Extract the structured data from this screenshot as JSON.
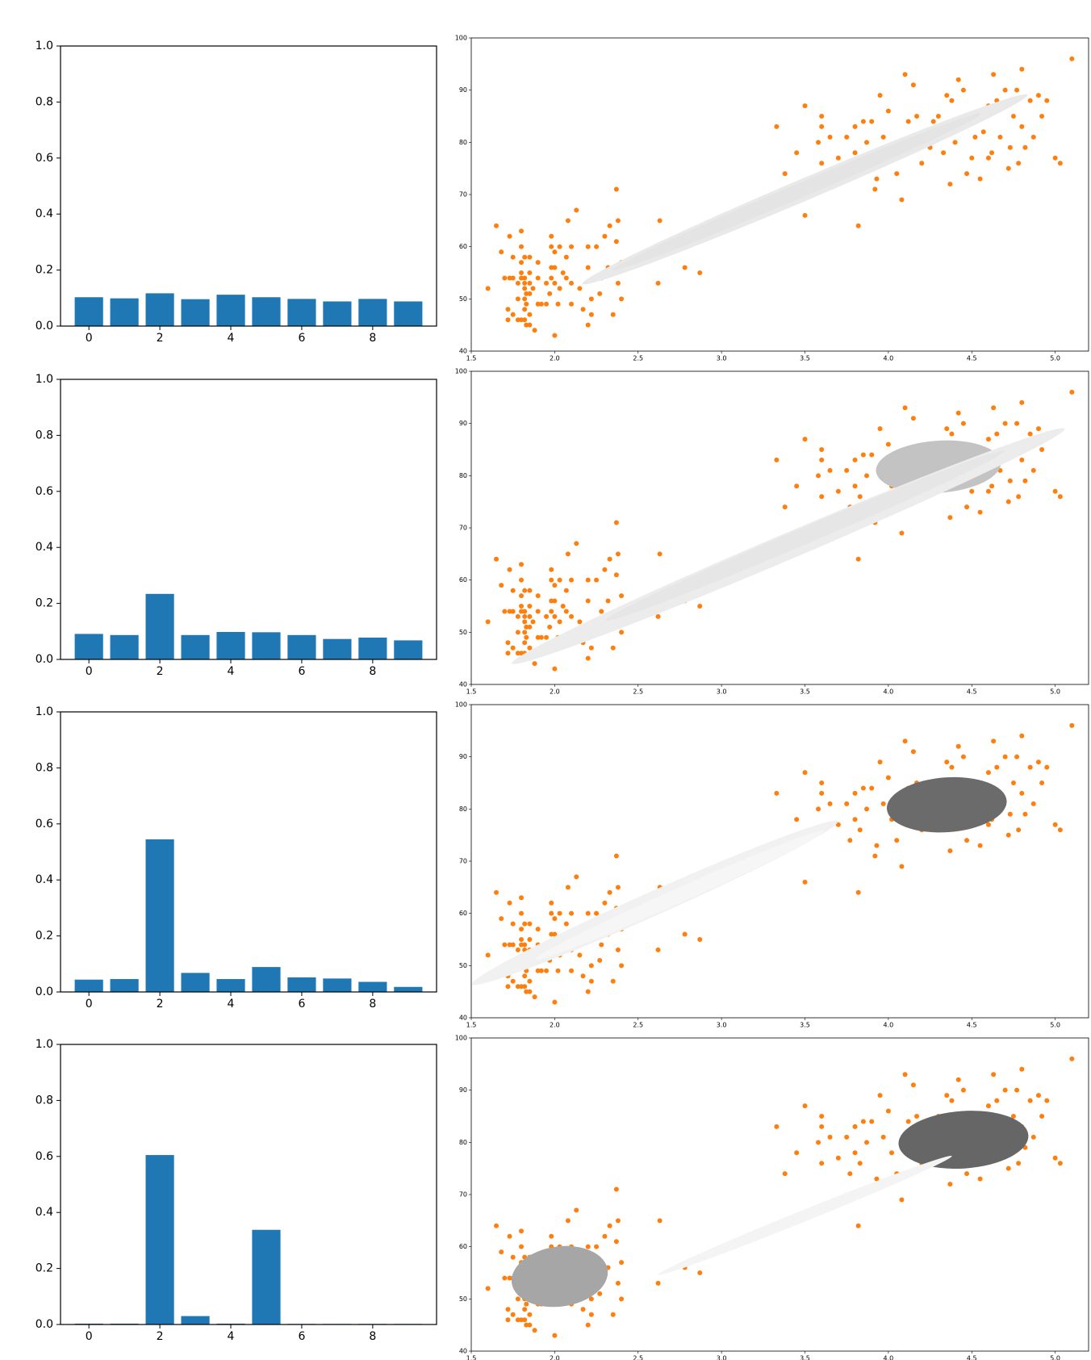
{
  "colors": {
    "bar": "#1f77b4",
    "point": "#ff7f0e",
    "axis": "#000000"
  },
  "chart_data": [
    {
      "type": "bar",
      "categories": [
        0,
        1,
        2,
        3,
        4,
        5,
        6,
        7,
        8,
        9
      ],
      "values": [
        0.103,
        0.099,
        0.117,
        0.096,
        0.112,
        0.103,
        0.097,
        0.088,
        0.097,
        0.088
      ],
      "ylim": [
        0,
        1.0
      ],
      "yticks": [
        "0.0",
        "0.2",
        "0.4",
        "0.6",
        "0.8",
        "1.0"
      ],
      "xticks": [
        "0",
        "2",
        "4",
        "6",
        "8"
      ]
    },
    {
      "type": "scatter",
      "xlim": [
        1.5,
        5.2
      ],
      "ylim": [
        40,
        100
      ],
      "xticks": [
        "1.5",
        "2.0",
        "2.5",
        "3.0",
        "3.5",
        "4.0",
        "4.5",
        "5.0"
      ],
      "yticks": [
        "40",
        "50",
        "60",
        "70",
        "80",
        "90",
        "100"
      ],
      "components": [
        {
          "center": [
            3.5,
            71
          ],
          "width": 2.9,
          "height": 4.2,
          "angle": 23,
          "gray": "#e9e9e9"
        },
        {
          "center": [
            3.45,
            70.5
          ],
          "width": 2.4,
          "height": 2.8,
          "angle": 23,
          "gray": "#e4e4e4"
        }
      ]
    },
    {
      "type": "bar",
      "categories": [
        0,
        1,
        2,
        3,
        4,
        5,
        6,
        7,
        8,
        9
      ],
      "values": [
        0.091,
        0.087,
        0.234,
        0.087,
        0.098,
        0.097,
        0.087,
        0.073,
        0.078,
        0.068
      ],
      "ylim": [
        0,
        1.0
      ],
      "yticks": [
        "0.0",
        "0.2",
        "0.4",
        "0.6",
        "0.8",
        "1.0"
      ],
      "xticks": [
        "0",
        "2",
        "4",
        "6",
        "8"
      ]
    },
    {
      "type": "scatter",
      "xlim": [
        1.5,
        5.2
      ],
      "ylim": [
        40,
        100
      ],
      "xticks": [
        "1.5",
        "2.0",
        "2.5",
        "3.0",
        "3.5",
        "4.0",
        "4.5",
        "5.0"
      ],
      "yticks": [
        "40",
        "50",
        "60",
        "70",
        "80",
        "90",
        "100"
      ],
      "components": [
        {
          "center": [
            4.3,
            81.7
          ],
          "width": 0.75,
          "height": 10,
          "angle": 4,
          "gray": "#c3c3c3"
        },
        {
          "center": [
            3.4,
            66.5
          ],
          "width": 3.6,
          "height": 5.0,
          "angle": 23,
          "gray": "#ececec"
        },
        {
          "center": [
            3.5,
            68.5
          ],
          "width": 2.6,
          "height": 3.2,
          "angle": 23,
          "gray": "#e6e6e6"
        }
      ]
    },
    {
      "type": "bar",
      "categories": [
        0,
        1,
        2,
        3,
        4,
        5,
        6,
        7,
        8,
        9
      ],
      "values": [
        0.044,
        0.046,
        0.545,
        0.068,
        0.046,
        0.089,
        0.052,
        0.048,
        0.036,
        0.018
      ],
      "ylim": [
        0,
        1.0
      ],
      "yticks": [
        "0.0",
        "0.2",
        "0.4",
        "0.6",
        "0.8",
        "1.0"
      ],
      "xticks": [
        "0",
        "2",
        "4",
        "6",
        "8"
      ]
    },
    {
      "type": "scatter",
      "xlim": [
        1.5,
        5.2
      ],
      "ylim": [
        40,
        100
      ],
      "xticks": [
        "1.5",
        "2.0",
        "2.5",
        "3.0",
        "3.5",
        "4.0",
        "4.5",
        "5.0"
      ],
      "yticks": [
        "40",
        "50",
        "60",
        "70",
        "80",
        "90",
        "100"
      ],
      "components": [
        {
          "center": [
            4.35,
            80.8
          ],
          "width": 0.72,
          "height": 10.5,
          "angle": 4,
          "gray": "#6b6b6b"
        },
        {
          "center": [
            2.6,
            62
          ],
          "width": 2.4,
          "height": 4.6,
          "angle": 24,
          "gray": "#f1f1f1"
        },
        {
          "center": [
            2.75,
            63.5
          ],
          "width": 1.9,
          "height": 2.8,
          "angle": 24,
          "gray": "#f6f6f6"
        }
      ]
    },
    {
      "type": "bar",
      "categories": [
        0,
        1,
        2,
        3,
        4,
        5,
        6,
        7,
        8,
        9
      ],
      "values": [
        0.003,
        0.003,
        0.605,
        0.03,
        0.003,
        0.338,
        0.002,
        0.002,
        0.002,
        0.002
      ],
      "ylim": [
        0,
        1.0
      ],
      "yticks": [
        "0.0",
        "0.2",
        "0.4",
        "0.6",
        "0.8",
        "1.0"
      ],
      "xticks": [
        "0",
        "2",
        "4",
        "6",
        "8"
      ]
    },
    {
      "type": "scatter",
      "xlim": [
        1.5,
        5.2
      ],
      "ylim": [
        40,
        100
      ],
      "xticks": [
        "1.5",
        "2.0",
        "2.5",
        "3.0",
        "3.5",
        "4.0",
        "4.5",
        "5.0"
      ],
      "yticks": [
        "40",
        "50",
        "60",
        "70",
        "80",
        "90",
        "100"
      ],
      "components": [
        {
          "center": [
            4.45,
            80.5
          ],
          "width": 0.78,
          "height": 11,
          "angle": 4,
          "gray": "#666666"
        },
        {
          "center": [
            3.5,
            66
          ],
          "width": 1.9,
          "height": 2.2,
          "angle": 22,
          "gray": "#f4f4f4"
        },
        {
          "center": [
            2.03,
            54.3
          ],
          "width": 0.58,
          "height": 11.5,
          "angle": 8,
          "gray": "#a6a6a6"
        }
      ]
    }
  ],
  "scatter_points": [
    [
      1.6,
      52
    ],
    [
      1.65,
      64
    ],
    [
      1.68,
      59
    ],
    [
      1.7,
      54
    ],
    [
      1.72,
      48
    ],
    [
      1.72,
      46
    ],
    [
      1.73,
      54
    ],
    [
      1.73,
      62
    ],
    [
      1.75,
      58
    ],
    [
      1.75,
      54
    ],
    [
      1.75,
      47
    ],
    [
      1.78,
      46
    ],
    [
      1.78,
      50
    ],
    [
      1.78,
      53
    ],
    [
      1.8,
      46
    ],
    [
      1.8,
      54
    ],
    [
      1.8,
      55
    ],
    [
      1.8,
      57
    ],
    [
      1.8,
      60
    ],
    [
      1.8,
      63
    ],
    [
      1.82,
      46
    ],
    [
      1.82,
      48
    ],
    [
      1.82,
      50
    ],
    [
      1.82,
      52
    ],
    [
      1.82,
      53
    ],
    [
      1.82,
      54
    ],
    [
      1.82,
      58
    ],
    [
      1.83,
      45
    ],
    [
      1.83,
      51
    ],
    [
      1.83,
      49
    ],
    [
      1.85,
      45
    ],
    [
      1.85,
      47
    ],
    [
      1.85,
      51
    ],
    [
      1.85,
      53
    ],
    [
      1.85,
      55
    ],
    [
      1.85,
      58
    ],
    [
      1.87,
      52
    ],
    [
      1.88,
      44
    ],
    [
      1.9,
      49
    ],
    [
      1.9,
      54
    ],
    [
      1.9,
      57
    ],
    [
      1.92,
      49
    ],
    [
      1.95,
      49
    ],
    [
      1.95,
      53
    ],
    [
      1.97,
      51
    ],
    [
      1.98,
      54
    ],
    [
      1.98,
      56
    ],
    [
      1.98,
      60
    ],
    [
      1.98,
      62
    ],
    [
      2.0,
      43
    ],
    [
      2.0,
      53
    ],
    [
      2.0,
      56
    ],
    [
      2.0,
      59
    ],
    [
      2.02,
      49
    ],
    [
      2.03,
      52
    ],
    [
      2.03,
      60
    ],
    [
      2.05,
      55
    ],
    [
      2.07,
      54
    ],
    [
      2.07,
      58
    ],
    [
      2.08,
      65
    ],
    [
      2.1,
      49
    ],
    [
      2.1,
      53
    ],
    [
      2.1,
      60
    ],
    [
      2.13,
      67
    ],
    [
      2.15,
      52
    ],
    [
      2.17,
      48
    ],
    [
      2.2,
      56
    ],
    [
      2.2,
      45
    ],
    [
      2.2,
      60
    ],
    [
      2.22,
      50
    ],
    [
      2.22,
      47
    ],
    [
      2.25,
      60
    ],
    [
      2.27,
      51
    ],
    [
      2.28,
      54
    ],
    [
      2.3,
      62
    ],
    [
      2.32,
      56
    ],
    [
      2.33,
      64
    ],
    [
      2.35,
      47
    ],
    [
      2.37,
      61
    ],
    [
      2.37,
      71
    ],
    [
      2.38,
      53
    ],
    [
      2.38,
      65
    ],
    [
      2.4,
      57
    ],
    [
      2.4,
      50
    ],
    [
      2.62,
      53
    ],
    [
      2.63,
      65
    ],
    [
      2.78,
      56
    ],
    [
      2.87,
      55
    ],
    [
      3.33,
      83
    ],
    [
      3.38,
      74
    ],
    [
      3.45,
      78
    ],
    [
      3.5,
      87
    ],
    [
      3.5,
      66
    ],
    [
      3.58,
      80
    ],
    [
      3.6,
      76
    ],
    [
      3.6,
      85
    ],
    [
      3.6,
      83
    ],
    [
      3.65,
      81
    ],
    [
      3.7,
      77
    ],
    [
      3.75,
      81
    ],
    [
      3.77,
      74
    ],
    [
      3.8,
      83
    ],
    [
      3.8,
      78
    ],
    [
      3.82,
      64
    ],
    [
      3.83,
      76
    ],
    [
      3.85,
      84
    ],
    [
      3.87,
      80
    ],
    [
      3.9,
      84
    ],
    [
      3.92,
      71
    ],
    [
      3.93,
      73
    ],
    [
      3.95,
      89
    ],
    [
      3.97,
      81
    ],
    [
      4.0,
      86
    ],
    [
      4.02,
      78
    ],
    [
      4.05,
      74
    ],
    [
      4.08,
      69
    ],
    [
      4.1,
      93
    ],
    [
      4.12,
      84
    ],
    [
      4.13,
      79
    ],
    [
      4.15,
      91
    ],
    [
      4.17,
      85
    ],
    [
      4.2,
      80
    ],
    [
      4.2,
      76
    ],
    [
      4.25,
      79
    ],
    [
      4.27,
      84
    ],
    [
      4.3,
      85
    ],
    [
      4.33,
      78
    ],
    [
      4.35,
      89
    ],
    [
      4.37,
      72
    ],
    [
      4.38,
      88
    ],
    [
      4.4,
      80
    ],
    [
      4.42,
      92
    ],
    [
      4.45,
      90
    ],
    [
      4.47,
      74
    ],
    [
      4.5,
      77
    ],
    [
      4.52,
      81
    ],
    [
      4.55,
      73
    ],
    [
      4.57,
      82
    ],
    [
      4.6,
      87
    ],
    [
      4.6,
      77
    ],
    [
      4.62,
      78
    ],
    [
      4.63,
      93
    ],
    [
      4.65,
      88
    ],
    [
      4.67,
      81
    ],
    [
      4.7,
      90
    ],
    [
      4.72,
      75
    ],
    [
      4.73,
      79
    ],
    [
      4.75,
      85
    ],
    [
      4.77,
      90
    ],
    [
      4.78,
      76
    ],
    [
      4.8,
      94
    ],
    [
      4.8,
      83
    ],
    [
      4.82,
      79
    ],
    [
      4.85,
      88
    ],
    [
      4.87,
      81
    ],
    [
      4.9,
      89
    ],
    [
      4.92,
      85
    ],
    [
      4.95,
      88
    ],
    [
      5.0,
      77
    ],
    [
      5.03,
      76
    ],
    [
      5.1,
      96
    ]
  ]
}
